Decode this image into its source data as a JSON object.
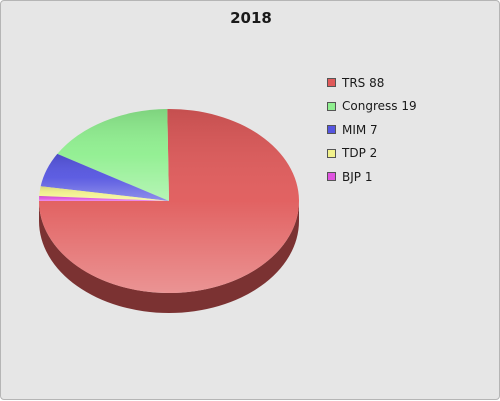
{
  "chart_data": {
    "type": "pie",
    "title": "2018",
    "slices": [
      {
        "label": "TRS",
        "value": 88,
        "color": "#e05a5a",
        "legend": "TRS 88"
      },
      {
        "label": "Congress",
        "value": 19,
        "color": "#8fef8f",
        "legend": "Congress 19"
      },
      {
        "label": "MIM",
        "value": 7,
        "color": "#5555e0",
        "legend": "MIM 7"
      },
      {
        "label": "TDP",
        "value": 2,
        "color": "#f2f28c",
        "legend": "TDP 2"
      },
      {
        "label": "BJP",
        "value": 1,
        "color": "#e055e0",
        "legend": "BJP 1"
      }
    ],
    "legend_position": "right",
    "style": "3d"
  }
}
